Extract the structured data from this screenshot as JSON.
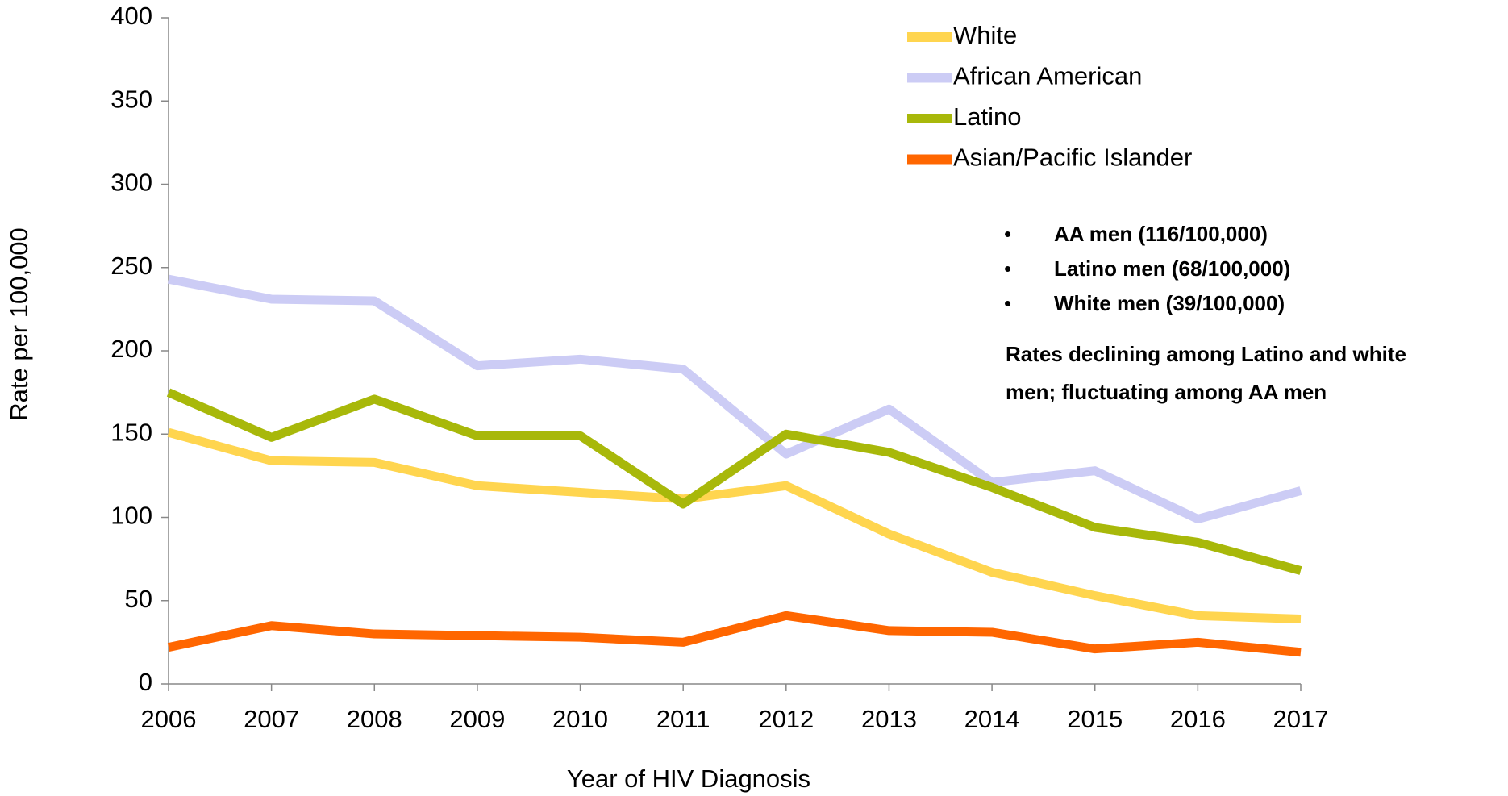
{
  "chart_data": {
    "type": "line",
    "x_label": "Year of HIV Diagnosis",
    "y_label": "Rate per 100,000",
    "categories": [
      "2006",
      "2007",
      "2008",
      "2009",
      "2010",
      "2011",
      "2012",
      "2013",
      "2014",
      "2015",
      "2016",
      "2017"
    ],
    "ylim": [
      0,
      400
    ],
    "yticks": [
      0,
      50,
      100,
      150,
      200,
      250,
      300,
      350,
      400
    ],
    "grid": false,
    "legend": "top-right",
    "series": [
      {
        "name": "White",
        "color": "#ffd54f",
        "values": [
          151,
          134,
          133,
          119,
          115,
          111,
          119,
          90,
          67,
          53,
          41,
          39
        ]
      },
      {
        "name": "African American",
        "color": "#ccccf5",
        "values": [
          243,
          231,
          230,
          191,
          195,
          189,
          138,
          165,
          121,
          128,
          99,
          116
        ]
      },
      {
        "name": "Latino",
        "color": "#a8b80a",
        "values": [
          175,
          148,
          171,
          149,
          149,
          108,
          150,
          139,
          118,
          94,
          85,
          68
        ]
      },
      {
        "name": "Asian/Pacific Islander",
        "color": "#ff6600",
        "values": [
          22,
          35,
          30,
          29,
          28,
          25,
          41,
          32,
          31,
          21,
          25,
          19
        ]
      }
    ],
    "annotations": {
      "bullets": [
        "AA men (116/100,000)",
        "Latino men (68/100,000)",
        "White men (39/100,000)"
      ],
      "note": [
        "Rates declining among Latino and white",
        "men; fluctuating among AA men"
      ]
    }
  }
}
